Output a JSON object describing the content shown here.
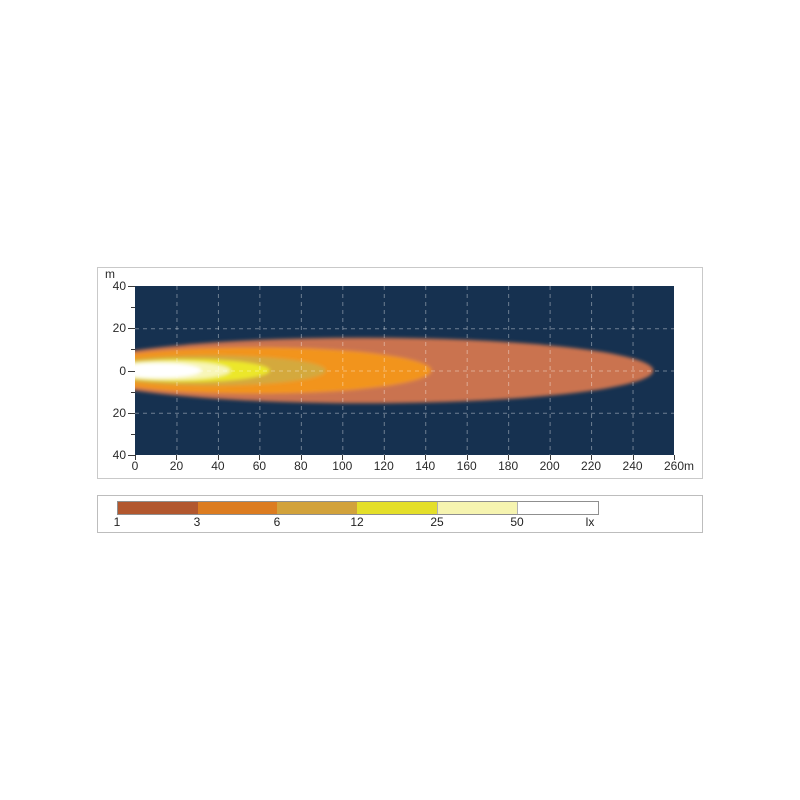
{
  "page": {
    "background": "#ffffff"
  },
  "chart_data": {
    "type": "heatmap",
    "subtype": "isolux-beam-pattern",
    "title": "",
    "x_axis": {
      "unit": "m",
      "ticks": [
        0,
        20,
        40,
        60,
        80,
        100,
        120,
        140,
        160,
        180,
        200,
        220,
        240,
        260
      ],
      "range": [
        0,
        260
      ]
    },
    "y_axis": {
      "unit": "m",
      "tick_labels": [
        "40",
        "20",
        "0",
        "20",
        "40"
      ],
      "tick_values": [
        40,
        20,
        0,
        -20,
        -40
      ],
      "minor_tick_values": [
        30,
        10,
        -10,
        -30
      ],
      "range": [
        -40,
        40
      ]
    },
    "grid": {
      "show": true,
      "style": "dashed",
      "x_step_m": 20,
      "y_step_m": 20
    },
    "colors": {
      "plot_background": "#163150",
      "grid_line": "rgba(255,255,255,0.38)",
      "tick": "#3a3a3a"
    },
    "contours": [
      {
        "lux": 1,
        "color": "#ca7350",
        "reach_m": 250,
        "max_half_width_m": 15.5,
        "half_width_at_source_m": 9.5
      },
      {
        "lux": 3,
        "color": "#f2941f",
        "reach_m": 143,
        "max_half_width_m": 11.0,
        "half_width_at_source_m": 8.0
      },
      {
        "lux": 6,
        "color": "#d4a93d",
        "reach_m": 92,
        "max_half_width_m": 7.2,
        "half_width_at_source_m": 5.5
      },
      {
        "lux": 12,
        "color": "#ece72c",
        "reach_m": 65,
        "max_half_width_m": 5.4,
        "half_width_at_source_m": 4.2
      },
      {
        "lux": 25,
        "color": "#f8f6b8",
        "reach_m": 46,
        "max_half_width_m": 4.4,
        "half_width_at_source_m": 3.6
      },
      {
        "lux": 50,
        "color": "#ffffff",
        "reach_m": 32,
        "max_half_width_m": 3.5,
        "half_width_at_source_m": 3.0
      }
    ]
  },
  "legend": {
    "values": [
      "1",
      "3",
      "6",
      "12",
      "25",
      "50"
    ],
    "unit_label": "lx",
    "segment_colors": [
      "#b2572e",
      "#dc7c20",
      "#d2a23b",
      "#e4df2a",
      "#f6f4b0",
      "#ffffff"
    ]
  }
}
